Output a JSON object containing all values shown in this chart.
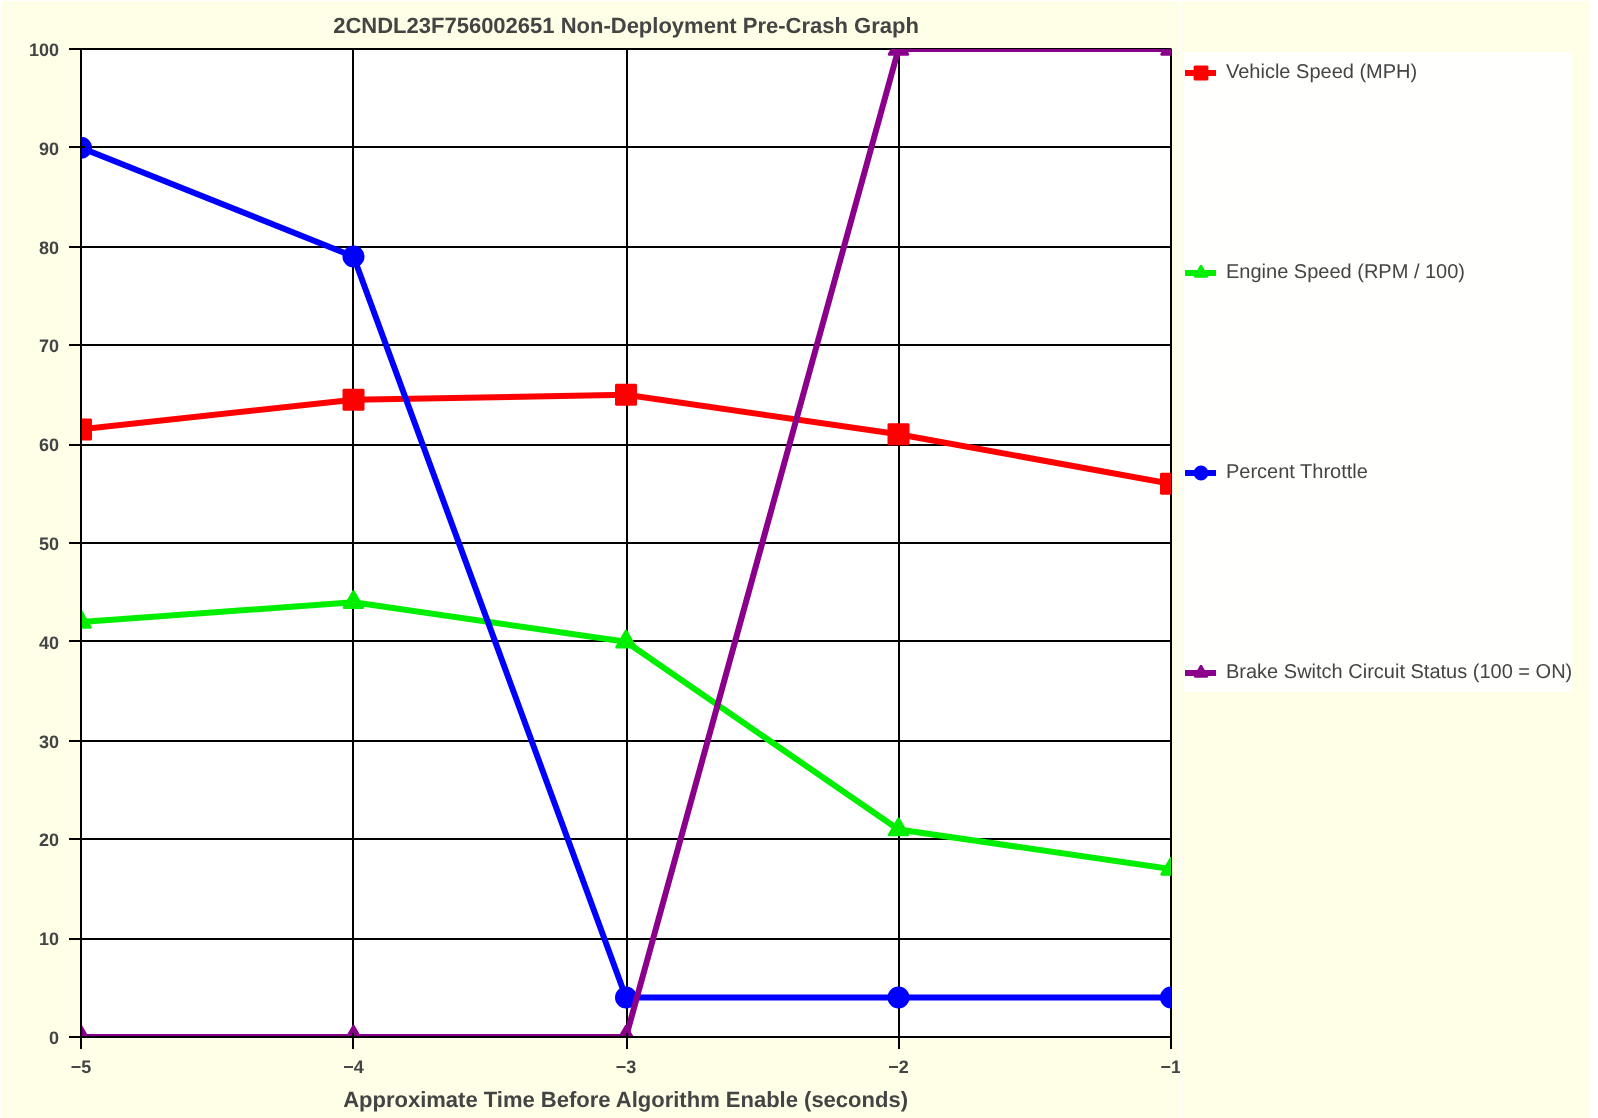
{
  "chart_data": {
    "type": "line",
    "title": "2CNDL23F756002651 Non-Deployment Pre-Crash Graph",
    "xlabel": "Approximate Time Before Algorithm Enable (seconds)",
    "x": [
      -5,
      -4,
      -3,
      -2,
      -1
    ],
    "series": [
      {
        "name": "Vehicle Speed (MPH)",
        "color": "#ff0000",
        "marker": "square",
        "values": [
          61.5,
          64.5,
          65,
          61,
          56
        ]
      },
      {
        "name": "Engine Speed (RPM / 100)",
        "color": "#00ee00",
        "marker": "triangle",
        "values": [
          42,
          44,
          40,
          21,
          17
        ]
      },
      {
        "name": "Percent Throttle",
        "color": "#0000ff",
        "marker": "circle",
        "values": [
          90,
          79,
          4,
          4,
          4
        ]
      },
      {
        "name": "Brake Switch Circuit Status (100 = ON)",
        "color": "#8b008b",
        "marker": "triangle",
        "values": [
          0,
          0,
          0,
          100,
          100
        ]
      }
    ],
    "xlim": [
      -5,
      -1
    ],
    "xticks": [
      -5,
      -4,
      -3,
      -2,
      -1
    ],
    "ylim": [
      0,
      100
    ],
    "yticks": [
      0,
      10,
      20,
      30,
      40,
      50,
      60,
      70,
      80,
      90,
      100
    ],
    "grid": true,
    "legend": "right",
    "line_style": "solid"
  }
}
